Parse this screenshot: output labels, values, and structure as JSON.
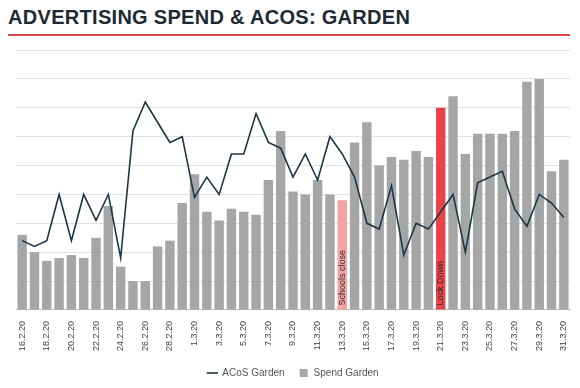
{
  "chart_data": {
    "type": "bar",
    "title": "ADVERTISING SPEND & ACOS: GARDEN",
    "categories": [
      "16.2.20",
      null,
      "18.2.20",
      null,
      "20.2.20",
      null,
      "22.2.20",
      null,
      "24.2.20",
      null,
      "26.2.20",
      null,
      "28.2.20",
      null,
      "1.3.20",
      null,
      "3.3.20",
      null,
      "5.3.20",
      null,
      "7.3.20",
      null,
      "9.3.20",
      null,
      "11.3.20",
      null,
      "13.3.20",
      null,
      "15.3.20",
      null,
      "17.3.20",
      null,
      "19.3.20",
      null,
      "21.3.20",
      null,
      "23.3.20",
      null,
      "25.3.20",
      null,
      "27.3.20",
      null,
      "29.3.20",
      null,
      "31.3.20"
    ],
    "series": [
      {
        "name": "Spend Garden",
        "type": "bar",
        "colors": [
          "#a6a6a6",
          "#a6a6a6",
          "#a6a6a6",
          "#a6a6a6",
          "#a6a6a6",
          "#a6a6a6",
          "#a6a6a6",
          "#a6a6a6",
          "#a6a6a6",
          "#a6a6a6",
          "#a6a6a6",
          "#a6a6a6",
          "#a6a6a6",
          "#a6a6a6",
          "#a6a6a6",
          "#a6a6a6",
          "#a6a6a6",
          "#a6a6a6",
          "#a6a6a6",
          "#a6a6a6",
          "#a6a6a6",
          "#a6a6a6",
          "#a6a6a6",
          "#a6a6a6",
          "#a6a6a6",
          "#a6a6a6",
          "#f4a3a3",
          "#a6a6a6",
          "#a6a6a6",
          "#a6a6a6",
          "#a6a6a6",
          "#a6a6a6",
          "#a6a6a6",
          "#a6a6a6",
          "#e8444a",
          "#a6a6a6",
          "#a6a6a6",
          "#a6a6a6",
          "#a6a6a6",
          "#a6a6a6",
          "#a6a6a6",
          "#a6a6a6",
          "#a6a6a6",
          "#a6a6a6",
          "#a6a6a6"
        ],
        "values": [
          2.6,
          2.0,
          1.7,
          1.8,
          1.9,
          1.8,
          2.5,
          3.6,
          1.5,
          1.0,
          1.0,
          2.2,
          2.4,
          3.7,
          4.7,
          3.4,
          3.1,
          3.5,
          3.4,
          3.3,
          4.5,
          6.2,
          4.1,
          4.0,
          4.5,
          4.0,
          3.8,
          5.8,
          6.5,
          5.0,
          5.3,
          5.2,
          5.5,
          5.3,
          7.0,
          7.4,
          5.4,
          6.1,
          6.1,
          6.1,
          6.2,
          7.9,
          8.0,
          4.8,
          5.2
        ]
      },
      {
        "name": "ACoS Garden",
        "type": "line",
        "color": "#1d3646",
        "values": [
          2.4,
          2.2,
          2.4,
          4.0,
          2.4,
          4.0,
          3.1,
          4.0,
          1.8,
          6.2,
          7.2,
          6.5,
          5.8,
          6.0,
          3.9,
          4.6,
          4.0,
          5.4,
          5.4,
          6.8,
          5.8,
          5.6,
          4.6,
          5.4,
          4.5,
          6.0,
          5.4,
          4.6,
          3.0,
          2.8,
          4.3,
          1.9,
          3.0,
          2.8,
          3.4,
          4.0,
          2.0,
          4.4,
          4.6,
          4.8,
          3.5,
          2.9,
          4.0,
          3.7,
          3.2
        ]
      }
    ],
    "annotations": [
      {
        "text": "Schools close",
        "category": "13.3.20"
      },
      {
        "text": "Lock Down",
        "category": "21.3.20"
      }
    ],
    "ylim": [
      0,
      9
    ],
    "yticks": [
      0,
      1,
      2,
      3,
      4,
      5,
      6,
      7,
      8,
      9
    ],
    "grid": true,
    "tick_labels": "x",
    "legend": "bottom"
  }
}
